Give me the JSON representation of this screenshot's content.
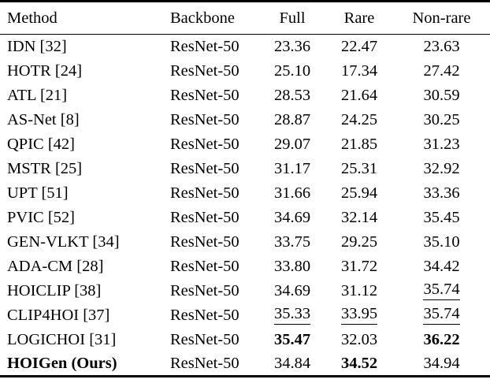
{
  "styles": {
    "background": "#ffffff",
    "text_color": "#000000",
    "rule_color": "#000000"
  },
  "table": {
    "columns": [
      {
        "key": "method",
        "label": "Method",
        "align": "left"
      },
      {
        "key": "backbone",
        "label": "Backbone",
        "align": "left"
      },
      {
        "key": "full",
        "label": "Full",
        "align": "center"
      },
      {
        "key": "rare",
        "label": "Rare",
        "align": "center"
      },
      {
        "key": "non-rare",
        "label": "Non-rare",
        "align": "center"
      }
    ],
    "rows": [
      {
        "cells": [
          {
            "text": "IDN [32]"
          },
          {
            "text": "ResNet-50"
          },
          {
            "text": "23.36"
          },
          {
            "text": "22.47"
          },
          {
            "text": "23.63"
          }
        ]
      },
      {
        "cells": [
          {
            "text": "HOTR [24]"
          },
          {
            "text": "ResNet-50"
          },
          {
            "text": "25.10"
          },
          {
            "text": "17.34"
          },
          {
            "text": "27.42"
          }
        ]
      },
      {
        "cells": [
          {
            "text": "ATL [21]"
          },
          {
            "text": "ResNet-50"
          },
          {
            "text": "28.53"
          },
          {
            "text": "21.64"
          },
          {
            "text": "30.59"
          }
        ]
      },
      {
        "cells": [
          {
            "text": "AS-Net [8]"
          },
          {
            "text": "ResNet-50"
          },
          {
            "text": "28.87"
          },
          {
            "text": "24.25"
          },
          {
            "text": "30.25"
          }
        ]
      },
      {
        "cells": [
          {
            "text": "QPIC [42]"
          },
          {
            "text": "ResNet-50"
          },
          {
            "text": "29.07"
          },
          {
            "text": "21.85"
          },
          {
            "text": "31.23"
          }
        ]
      },
      {
        "cells": [
          {
            "text": "MSTR [25]"
          },
          {
            "text": "ResNet-50"
          },
          {
            "text": "31.17"
          },
          {
            "text": "25.31"
          },
          {
            "text": "32.92"
          }
        ]
      },
      {
        "cells": [
          {
            "text": "UPT [51]"
          },
          {
            "text": "ResNet-50"
          },
          {
            "text": "31.66"
          },
          {
            "text": "25.94"
          },
          {
            "text": "33.36"
          }
        ]
      },
      {
        "cells": [
          {
            "text": "PVIC [52]"
          },
          {
            "text": "ResNet-50"
          },
          {
            "text": "34.69"
          },
          {
            "text": "32.14"
          },
          {
            "text": "35.45"
          }
        ]
      },
      {
        "cells": [
          {
            "text": "GEN-VLKT [34]"
          },
          {
            "text": "ResNet-50"
          },
          {
            "text": "33.75"
          },
          {
            "text": "29.25"
          },
          {
            "text": "35.10"
          }
        ]
      },
      {
        "cells": [
          {
            "text": "ADA-CM [28]"
          },
          {
            "text": "ResNet-50"
          },
          {
            "text": "33.80"
          },
          {
            "text": "31.72"
          },
          {
            "text": "34.42"
          }
        ]
      },
      {
        "cells": [
          {
            "text": "HOICLIP [38]"
          },
          {
            "text": "ResNet-50"
          },
          {
            "text": "34.69"
          },
          {
            "text": "31.12"
          },
          {
            "text": "35.74",
            "underline": true
          }
        ]
      },
      {
        "cells": [
          {
            "text": "CLIP4HOI [37]"
          },
          {
            "text": "ResNet-50"
          },
          {
            "text": "35.33",
            "underline": true
          },
          {
            "text": "33.95",
            "underline": true
          },
          {
            "text": "35.74",
            "underline": true
          }
        ]
      },
      {
        "cells": [
          {
            "text": "LOGICHOI [31]"
          },
          {
            "text": "ResNet-50"
          },
          {
            "text": "35.47",
            "bold": true
          },
          {
            "text": "32.03"
          },
          {
            "text": "36.22",
            "bold": true
          }
        ]
      },
      {
        "cells": [
          {
            "text": "HOIGen (Ours)",
            "bold": true
          },
          {
            "text": "ResNet-50"
          },
          {
            "text": "34.84"
          },
          {
            "text": "34.52",
            "bold": true
          },
          {
            "text": "34.94"
          }
        ]
      }
    ]
  }
}
